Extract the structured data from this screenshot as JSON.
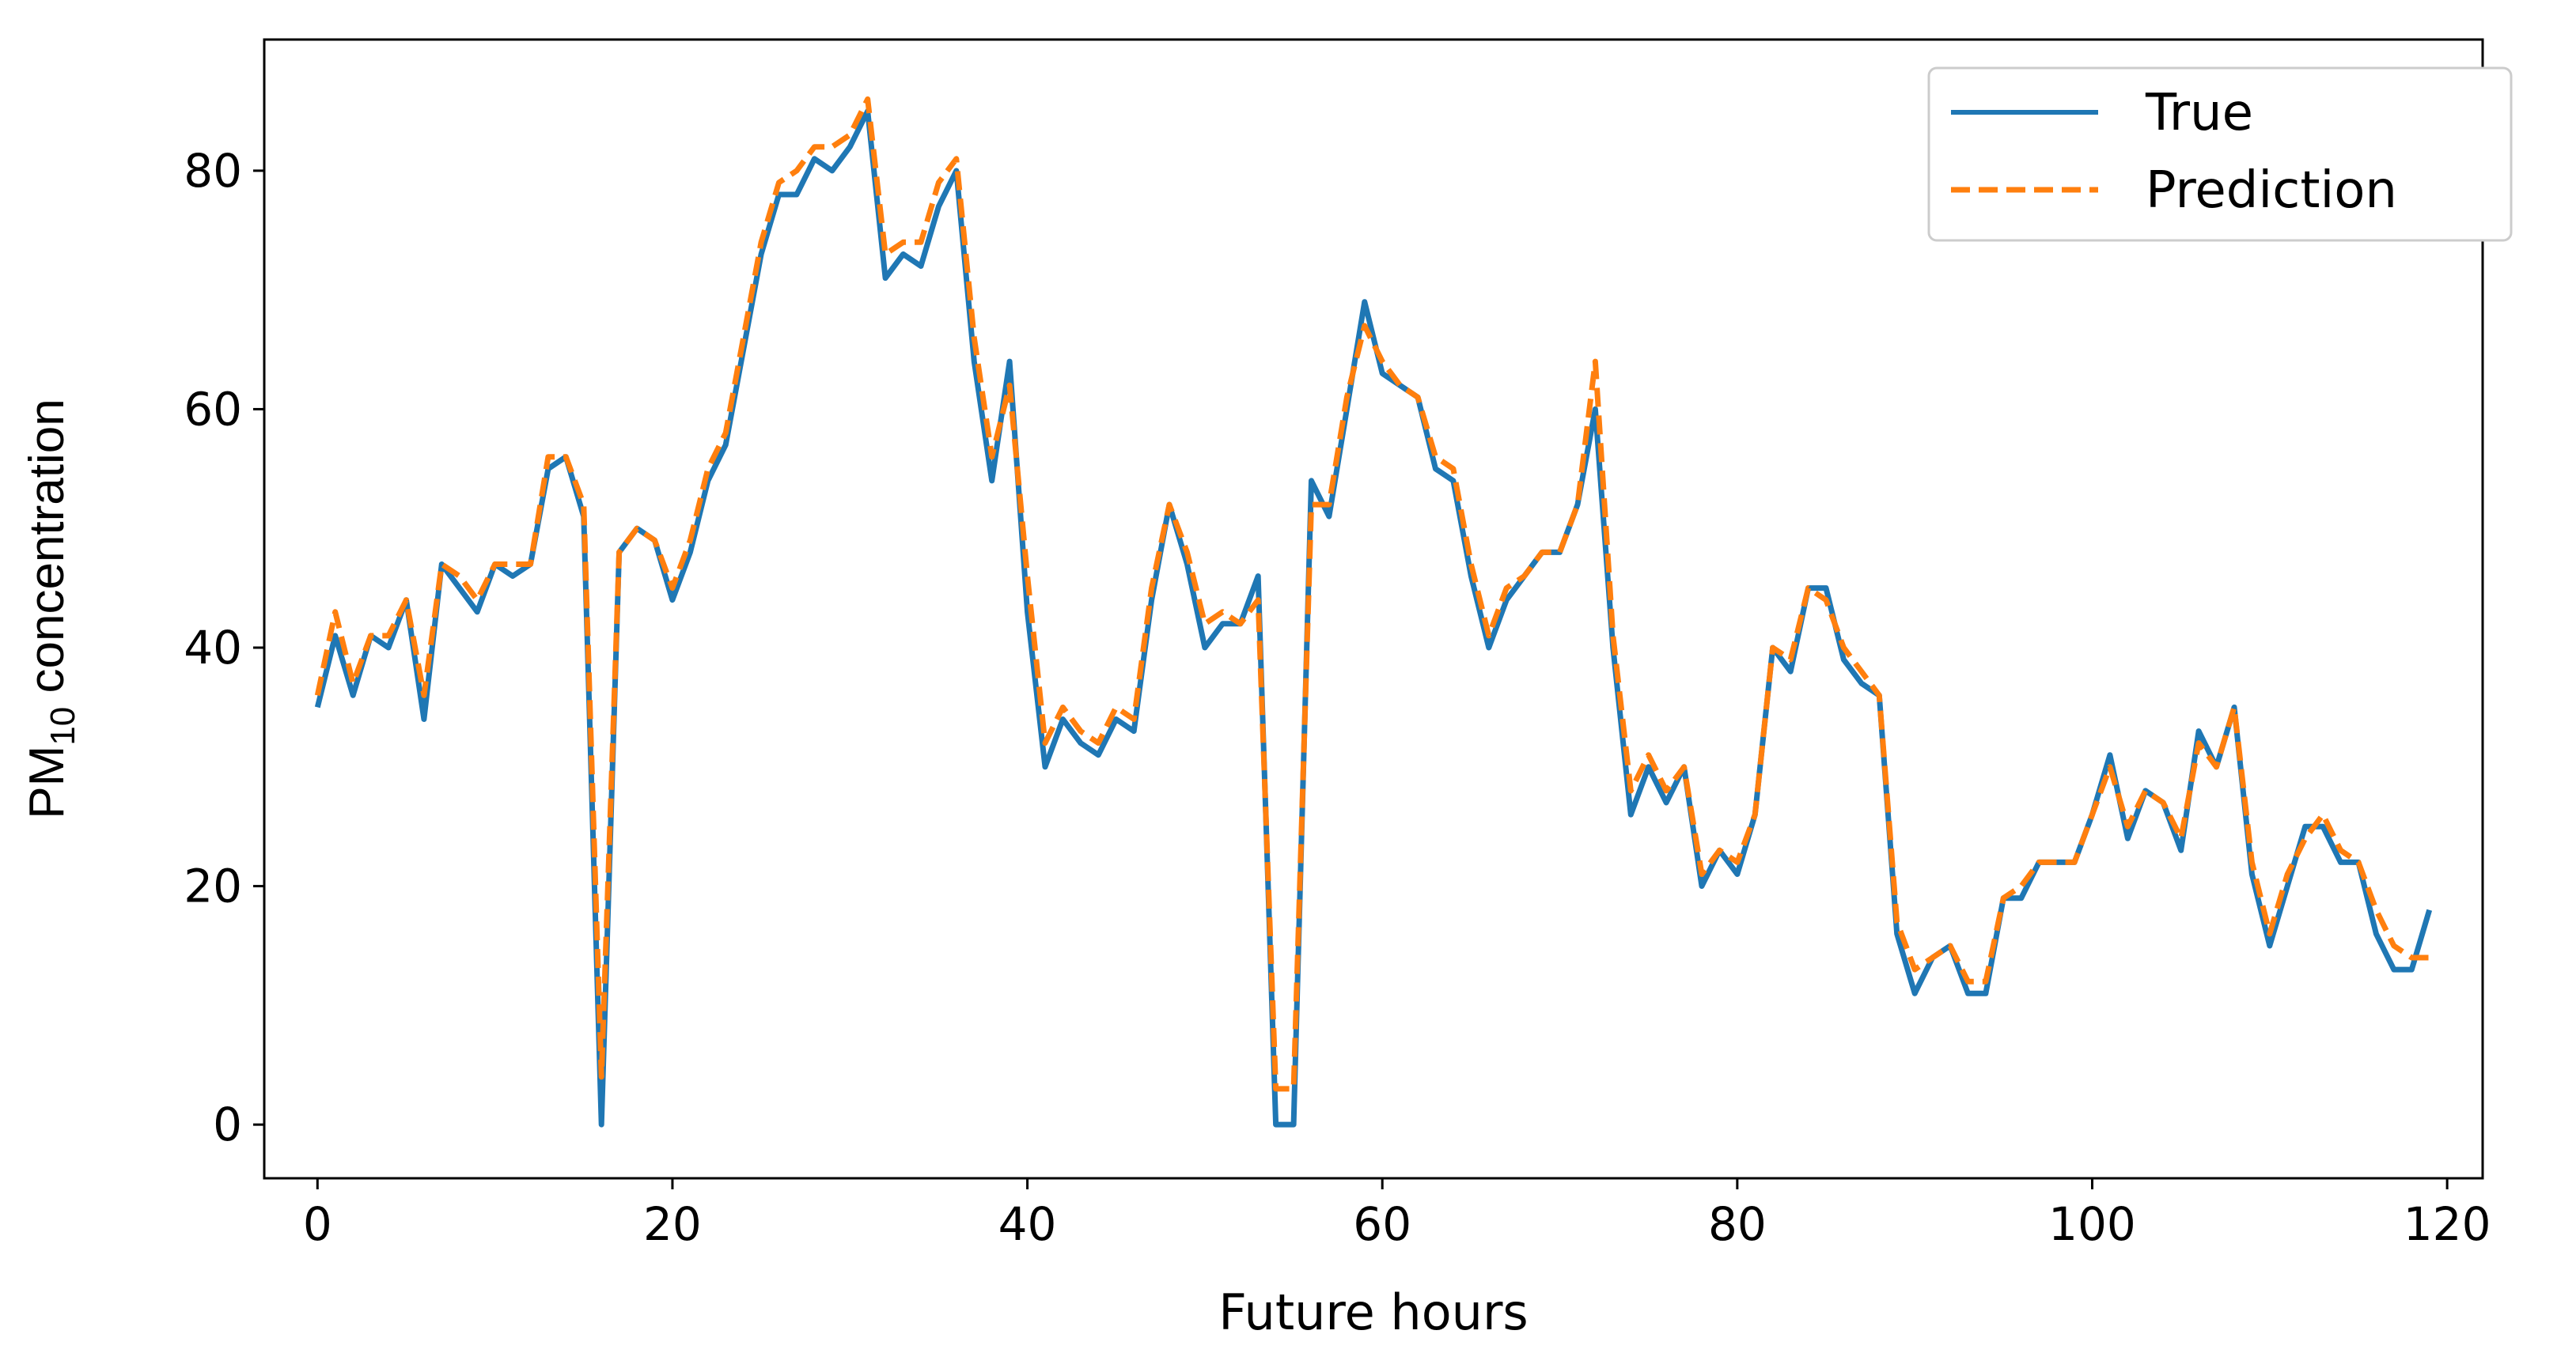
{
  "chart_data": {
    "type": "line",
    "title": "",
    "xlabel": "Future hours",
    "ylabel_main": "PM",
    "ylabel_sub": "10",
    "ylabel_rest": " concentration",
    "xlim": [
      -3,
      122
    ],
    "ylim": [
      -4.5,
      91
    ],
    "xticks": [
      0,
      20,
      40,
      60,
      80,
      100,
      120
    ],
    "yticks": [
      0,
      20,
      40,
      60,
      80
    ],
    "grid": false,
    "legend": "top-right",
    "series": [
      {
        "name": "True",
        "color": "#1f77b4",
        "style": "solid",
        "values": [
          35,
          41,
          36,
          41,
          40,
          44,
          34,
          47,
          45,
          43,
          47,
          46,
          47,
          55,
          56,
          51,
          0,
          48,
          50,
          49,
          44,
          48,
          54,
          57,
          65,
          73,
          78,
          78,
          81,
          80,
          82,
          85,
          71,
          73,
          72,
          77,
          80,
          64,
          54,
          64,
          43,
          30,
          34,
          32,
          31,
          34,
          33,
          44,
          52,
          47,
          40,
          42,
          42,
          46,
          0,
          0,
          54,
          51,
          60,
          69,
          63,
          62,
          61,
          55,
          54,
          46,
          40,
          44,
          46,
          48,
          48,
          52,
          60,
          40,
          26,
          30,
          27,
          30,
          20,
          23,
          21,
          26,
          40,
          38,
          45,
          45,
          39,
          37,
          36,
          16,
          11,
          14,
          15,
          11,
          11,
          19,
          19,
          22,
          22,
          22,
          26,
          31,
          24,
          28,
          27,
          23,
          33,
          30,
          35,
          21,
          15,
          20,
          25,
          25,
          22,
          22,
          16,
          13,
          13,
          18
        ]
      },
      {
        "name": "Prediction",
        "color": "#ff7f0e",
        "style": "dashed",
        "values": [
          36,
          43,
          37,
          41,
          41,
          44,
          36,
          47,
          46,
          44,
          47,
          47,
          47,
          56,
          56,
          52,
          4,
          48,
          50,
          49,
          45,
          49,
          55,
          58,
          66,
          74,
          79,
          80,
          82,
          82,
          83,
          86,
          73,
          74,
          74,
          79,
          81,
          66,
          56,
          62,
          46,
          32,
          35,
          33,
          32,
          35,
          34,
          45,
          52,
          48,
          42,
          43,
          42,
          44,
          3,
          3,
          52,
          52,
          61,
          67,
          64,
          62,
          61,
          56,
          55,
          47,
          41,
          45,
          46,
          48,
          48,
          52,
          64,
          41,
          28,
          31,
          28,
          30,
          21,
          23,
          22,
          26,
          40,
          39,
          45,
          44,
          40,
          38,
          36,
          17,
          13,
          14,
          15,
          12,
          12,
          19,
          20,
          22,
          22,
          22,
          26,
          30,
          25,
          28,
          27,
          24,
          32,
          30,
          35,
          22,
          16,
          21,
          24,
          26,
          23,
          22,
          18,
          15,
          14,
          14
        ]
      }
    ]
  }
}
